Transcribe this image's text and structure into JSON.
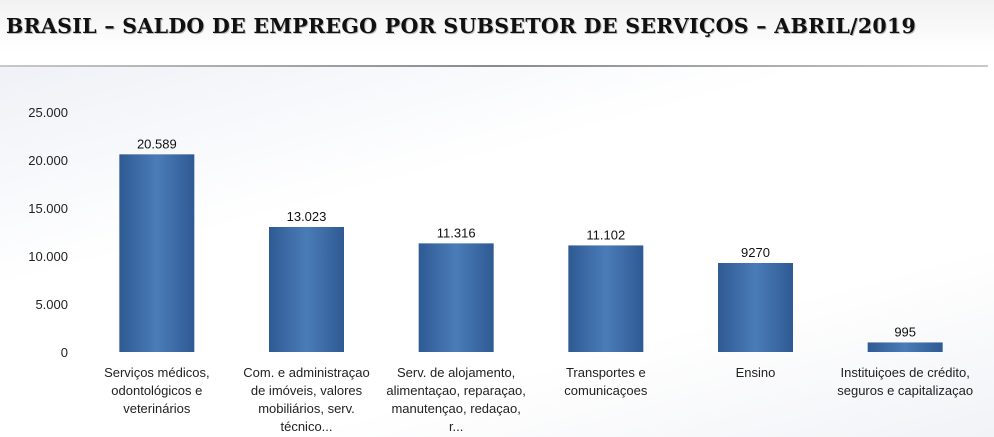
{
  "header": {
    "title": "BRASIL – SALDO DE EMPREGO POR SUBSETOR DE SERVIÇOS – ABRIL/2019"
  },
  "colors": {
    "bar_center": "#4a7cb8",
    "bar_edge": "#2f5a93"
  },
  "chart_data": {
    "type": "bar",
    "title": "BRASIL – SALDO DE EMPREGO POR SUBSETOR DE SERVIÇOS – ABRIL/2019",
    "categories": [
      [
        "Serviços médicos,",
        "odontológicos e",
        "veterinários"
      ],
      [
        "Com. e administraçao",
        "de imóveis, valores",
        "mobiliários, serv.",
        "técnico..."
      ],
      [
        "Serv. de alojamento,",
        "alimentaçao, reparaçao,",
        "manutençao, redaçao,",
        "r..."
      ],
      [
        "Transportes e",
        "comunicaçoes"
      ],
      [
        "Ensino"
      ],
      [
        "Instituiçoes de crédito,",
        "seguros e capitalizaçao"
      ]
    ],
    "values": [
      20589,
      13023,
      11316,
      11102,
      9270,
      995
    ],
    "data_labels": [
      "20.589",
      "13.023",
      "11.316",
      "11.102",
      "9270",
      "995"
    ],
    "yticks": [
      "0",
      "5.000",
      "10.000",
      "15.000",
      "20.000",
      "25.000"
    ],
    "ytick_values": [
      0,
      5000,
      10000,
      15000,
      20000,
      25000
    ],
    "ylim": [
      0,
      25000
    ],
    "xlabel": "",
    "ylabel": "",
    "grid": false,
    "legend": "none"
  }
}
